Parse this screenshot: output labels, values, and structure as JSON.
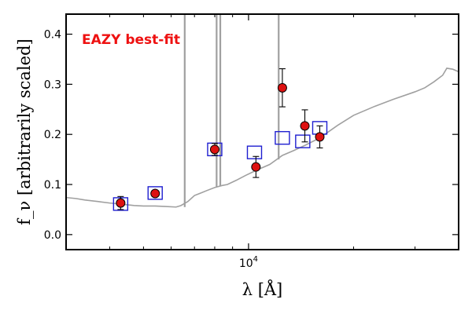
{
  "chart_data": {
    "type": "scatter",
    "title": "",
    "annotation": "EAZY best-fit",
    "annotation_color": "#ee1111",
    "xlabel": "λ [Å]",
    "ylabel": "f_ν [arbitrarily scaled]",
    "xscale": "log",
    "xlim": [
      3000,
      40000
    ],
    "ylim": [
      -0.03,
      0.44
    ],
    "yticks": [
      {
        "value": 0.0,
        "label": "0.0"
      },
      {
        "value": 0.1,
        "label": "0.1"
      },
      {
        "value": 0.2,
        "label": "0.2"
      },
      {
        "value": 0.3,
        "label": "0.3"
      },
      {
        "value": 0.4,
        "label": "0.4"
      }
    ],
    "xticks_labeled": [
      {
        "value": 10000,
        "label": "10^4"
      }
    ],
    "xticks_minor": [
      4000,
      5000,
      6000,
      7000,
      8000,
      9000,
      20000,
      30000
    ],
    "grid": false,
    "legend": "none",
    "series": [
      {
        "role": "observed photometry",
        "marker": "circle",
        "color": "#dd1111",
        "points": [
          {
            "x": 4300,
            "y": 0.063,
            "err": 0.013
          },
          {
            "x": 5400,
            "y": 0.082,
            "err": 0.006
          },
          {
            "x": 8000,
            "y": 0.17,
            "err": 0.012
          },
          {
            "x": 10500,
            "y": 0.135,
            "err": 0.021
          },
          {
            "x": 12500,
            "y": 0.293,
            "err": 0.038
          },
          {
            "x": 14500,
            "y": 0.217,
            "err": 0.032
          },
          {
            "x": 16000,
            "y": 0.195,
            "err": 0.022
          }
        ]
      },
      {
        "role": "model fluxes",
        "marker": "square",
        "color": "#1f1fd0",
        "points": [
          {
            "x": 4300,
            "y": 0.061
          },
          {
            "x": 5400,
            "y": 0.083
          },
          {
            "x": 8000,
            "y": 0.17
          },
          {
            "x": 10400,
            "y": 0.164
          },
          {
            "x": 12500,
            "y": 0.193
          },
          {
            "x": 14300,
            "y": 0.186
          },
          {
            "x": 16000,
            "y": 0.213
          }
        ]
      },
      {
        "role": "template spectrum",
        "style": "line",
        "color": "#a0a0a0",
        "points": [
          {
            "x": 3000,
            "y": 0.074
          },
          {
            "x": 3200,
            "y": 0.072
          },
          {
            "x": 3400,
            "y": 0.069
          },
          {
            "x": 3700,
            "y": 0.066
          },
          {
            "x": 4000,
            "y": 0.063
          },
          {
            "x": 4300,
            "y": 0.061
          },
          {
            "x": 4700,
            "y": 0.058
          },
          {
            "x": 5000,
            "y": 0.057
          },
          {
            "x": 5400,
            "y": 0.057
          },
          {
            "x": 5800,
            "y": 0.056
          },
          {
            "x": 6200,
            "y": 0.055
          },
          {
            "x": 6400,
            "y": 0.058
          },
          {
            "x": 6700,
            "y": 0.066
          },
          {
            "x": 7000,
            "y": 0.078
          },
          {
            "x": 7300,
            "y": 0.083
          },
          {
            "x": 7600,
            "y": 0.088
          },
          {
            "x": 8000,
            "y": 0.094
          },
          {
            "x": 8400,
            "y": 0.098
          },
          {
            "x": 8700,
            "y": 0.1
          },
          {
            "x": 9200,
            "y": 0.108
          },
          {
            "x": 9800,
            "y": 0.118
          },
          {
            "x": 10500,
            "y": 0.128
          },
          {
            "x": 11500,
            "y": 0.14
          },
          {
            "x": 12500,
            "y": 0.158
          },
          {
            "x": 13500,
            "y": 0.168
          },
          {
            "x": 14500,
            "y": 0.178
          },
          {
            "x": 16000,
            "y": 0.193
          },
          {
            "x": 18000,
            "y": 0.218
          },
          {
            "x": 20000,
            "y": 0.238
          },
          {
            "x": 23000,
            "y": 0.256
          },
          {
            "x": 26000,
            "y": 0.27
          },
          {
            "x": 30000,
            "y": 0.285
          },
          {
            "x": 32000,
            "y": 0.293
          },
          {
            "x": 34000,
            "y": 0.305
          },
          {
            "x": 36000,
            "y": 0.318
          },
          {
            "x": 37000,
            "y": 0.332
          },
          {
            "x": 38500,
            "y": 0.33
          },
          {
            "x": 40000,
            "y": 0.325
          }
        ],
        "emission_lines": [
          {
            "x": 6563,
            "y_bottom": 0.055
          },
          {
            "x": 8100,
            "y_bottom": 0.095
          },
          {
            "x": 8300,
            "y_bottom": 0.097
          },
          {
            "x": 12200,
            "y_bottom": 0.15
          }
        ]
      }
    ]
  }
}
